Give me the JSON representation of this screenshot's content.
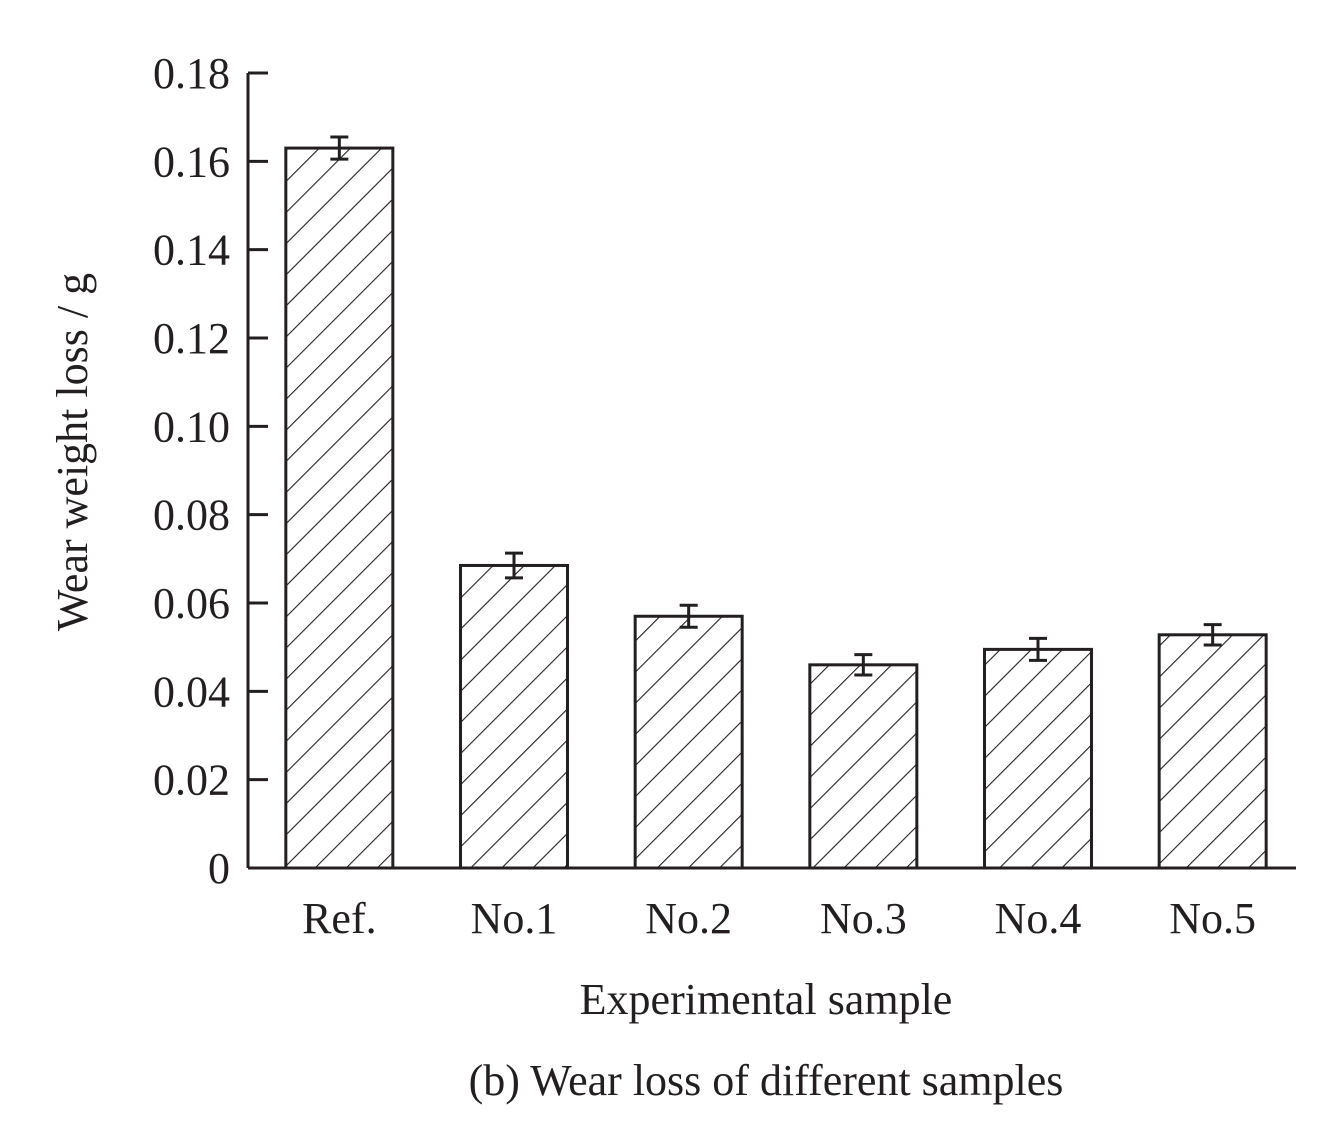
{
  "chart_data": {
    "type": "bar",
    "categories": [
      "Ref.",
      "No.1",
      "No.2",
      "No.3",
      "No.4",
      "No.5"
    ],
    "values": [
      0.163,
      0.0685,
      0.057,
      0.046,
      0.0495,
      0.0528
    ],
    "errors": [
      0.0025,
      0.0028,
      0.0025,
      0.0023,
      0.0025,
      0.0023
    ],
    "xlabel": "Experimental sample",
    "ylabel": "Wear weight loss / g",
    "ylim": [
      0,
      0.18
    ],
    "yticks": [
      "0",
      "0.02",
      "0.04",
      "0.06",
      "0.08",
      "0.10",
      "0.12",
      "0.14",
      "0.16",
      "0.18"
    ],
    "bar_fill": "hatched",
    "grid": false,
    "caption": "(b) Wear loss of different samples"
  },
  "colors": {
    "ink": "#231f20",
    "background": "#ffffff"
  }
}
